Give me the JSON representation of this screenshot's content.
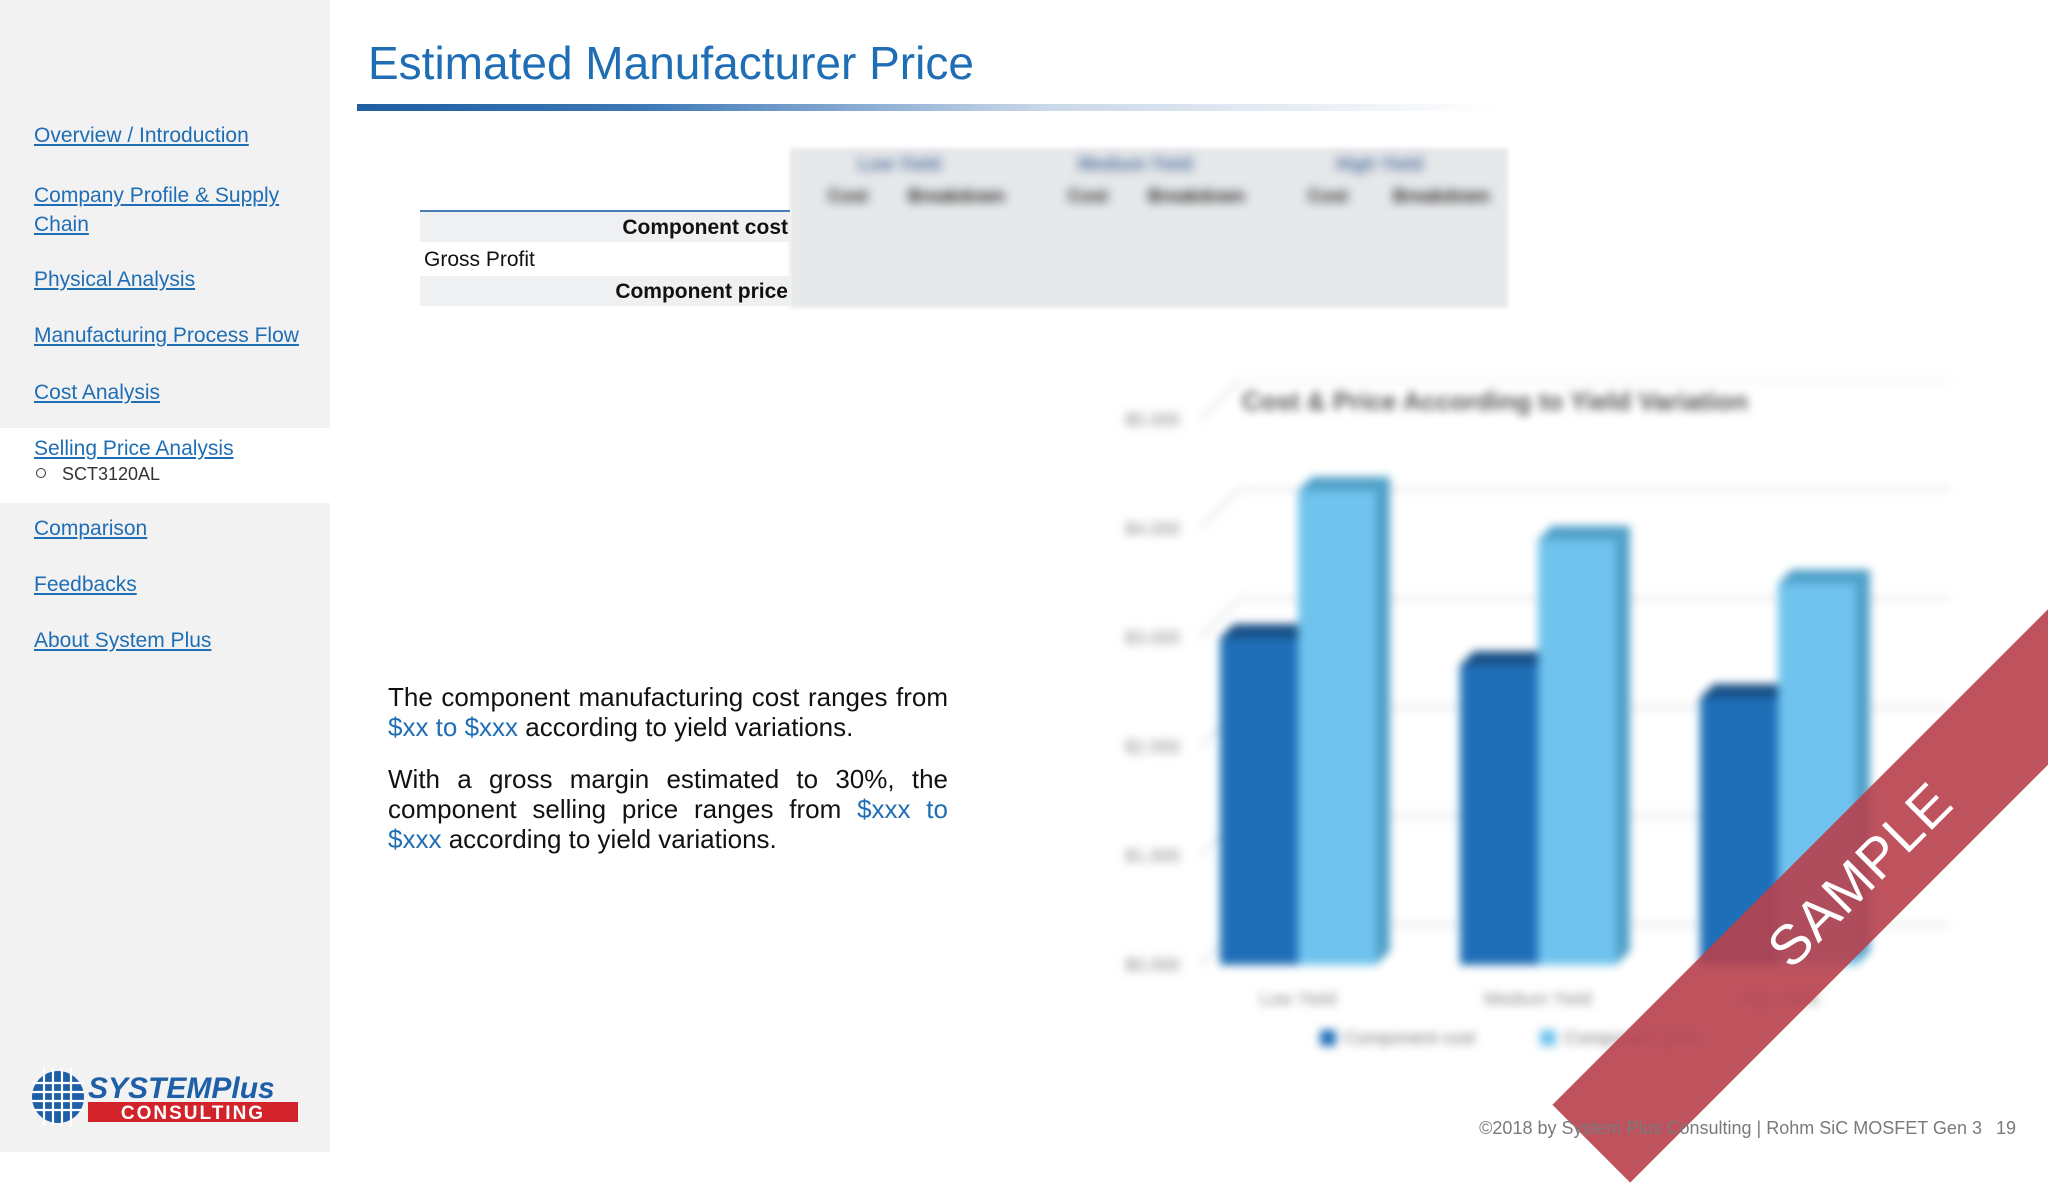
{
  "sidebar": {
    "items": [
      {
        "label": "Overview / Introduction"
      },
      {
        "label": "Company Profile & Supply Chain"
      },
      {
        "label": "Physical Analysis"
      },
      {
        "label": "Manufacturing Process Flow"
      },
      {
        "label": "Cost Analysis"
      },
      {
        "label": "Selling Price Analysis"
      },
      {
        "label": "Comparison"
      },
      {
        "label": "Feedbacks"
      },
      {
        "label": "About System Plus"
      }
    ],
    "active_subitem": "SCT3120AL"
  },
  "logo": {
    "top": "SYSTEMPlus",
    "bottom": "CONSULTING"
  },
  "title": "Estimated Manufacturer Price",
  "table": {
    "group_headers": [
      "Low Yield",
      "Medium Yield",
      "High Yield"
    ],
    "sub_headers": [
      "Cost",
      "Breakdown",
      "Cost",
      "Breakdown",
      "Cost",
      "Breakdown"
    ],
    "rows": [
      {
        "label": "Component cost",
        "bold": true
      },
      {
        "label": "Gross Profit",
        "bold": false
      },
      {
        "label": "Component price",
        "bold": true
      }
    ]
  },
  "text": {
    "p1_start": "The component manufacturing cost ranges from ",
    "p1_highlight": "$xx to $xxx",
    "p1_end": " according to yield variations.",
    "p2_start": "With a gross margin estimated to 30%, the component selling price ranges from ",
    "p2_highlight": "$xxx to $xxx",
    "p2_end": " according to yield variations."
  },
  "chart_data": {
    "type": "bar",
    "title": "Cost & Price According to Yield Variation",
    "categories": [
      "Low Yield",
      "Medium Yield",
      "High Yield"
    ],
    "series": [
      {
        "name": "Component cost",
        "values": [
          3.0,
          2.75,
          2.45
        ]
      },
      {
        "name": "Component price",
        "values": [
          4.35,
          3.9,
          3.5
        ]
      }
    ],
    "ytick_labels": [
      "$5.000",
      "$4.000",
      "$3.000",
      "$2.000",
      "$1.000",
      "$0.000"
    ],
    "ylim": [
      0,
      5
    ],
    "legend_position": "bottom",
    "colors": {
      "cost": "#1f6fb8",
      "price": "#6fc3ee"
    }
  },
  "watermark": "SAMPLE",
  "footer": {
    "text": "©2018 by System Plus Consulting | Rohm SiC MOSFET Gen 3",
    "page": "19"
  }
}
